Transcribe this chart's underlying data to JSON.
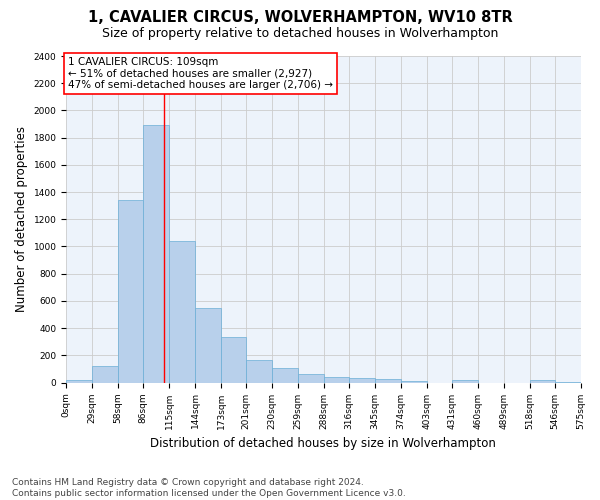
{
  "title": "1, CAVALIER CIRCUS, WOLVERHAMPTON, WV10 8TR",
  "subtitle": "Size of property relative to detached houses in Wolverhampton",
  "xlabel": "Distribution of detached houses by size in Wolverhampton",
  "ylabel": "Number of detached properties",
  "footer_line1": "Contains HM Land Registry data © Crown copyright and database right 2024.",
  "footer_line2": "Contains public sector information licensed under the Open Government Licence v3.0.",
  "bin_edges": [
    0,
    29,
    58,
    86,
    115,
    144,
    173,
    201,
    230,
    259,
    288,
    316,
    345,
    374,
    403,
    431,
    460,
    489,
    518,
    546,
    575
  ],
  "bar_heights": [
    20,
    120,
    1340,
    1890,
    1040,
    545,
    335,
    165,
    110,
    60,
    40,
    30,
    25,
    15,
    0,
    20,
    0,
    0,
    20,
    5
  ],
  "bar_color": "#b8d0eb",
  "bar_edge_color": "#6aaed6",
  "red_line_x": 109,
  "ylim": [
    0,
    2400
  ],
  "yticks": [
    0,
    200,
    400,
    600,
    800,
    1000,
    1200,
    1400,
    1600,
    1800,
    2000,
    2200,
    2400
  ],
  "annotation_line1": "1 CAVALIER CIRCUS: 109sqm",
  "annotation_line2": "← 51% of detached houses are smaller (2,927)",
  "annotation_line3": "47% of semi-detached houses are larger (2,706) →",
  "bg_color": "#ffffff",
  "axes_bg_color": "#edf3fb",
  "grid_color": "#cccccc",
  "title_fontsize": 10.5,
  "subtitle_fontsize": 9.0,
  "label_fontsize": 8.5,
  "tick_fontsize": 6.5,
  "annotation_fontsize": 7.5,
  "footer_fontsize": 6.5
}
